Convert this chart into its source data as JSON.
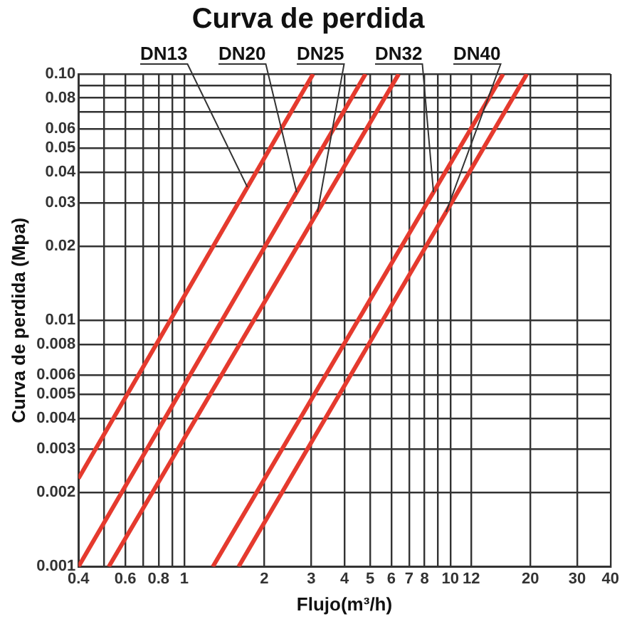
{
  "chart_data": {
    "type": "line",
    "title": "Curva de perdida",
    "xlabel": "Flujo(m³/h)",
    "ylabel": "Curva de perdida (Mpa)",
    "log": "xy",
    "grid": true,
    "legend": false,
    "marker": "none",
    "line_style": "solid",
    "xlim": [
      0.4,
      40
    ],
    "ylim": [
      0.001,
      0.1
    ],
    "xticks": [
      0.4,
      {
        "value": 0.5,
        "label": null
      },
      0.6,
      {
        "value": 0.7,
        "label": null
      },
      0.8,
      {
        "value": 0.9,
        "label": null
      },
      1,
      2,
      3,
      4,
      5,
      6,
      7,
      8,
      {
        "value": 9,
        "label": null
      },
      10,
      12,
      20,
      30,
      40
    ],
    "yticks": [
      0.001,
      0.002,
      0.003,
      0.004,
      0.005,
      0.006,
      0.008,
      0.01,
      0.02,
      0.03,
      0.04,
      0.05,
      0.06,
      {
        "value": 0.07,
        "label": null
      },
      0.08,
      {
        "value": 0.09,
        "label": null
      },
      {
        "value": 0.1,
        "label": "0.10"
      }
    ],
    "series": [
      {
        "name": "DN13",
        "color": "#e53a2e",
        "x": [
          0.4,
          3.05
        ],
        "values": [
          0.00228,
          0.1
        ]
      },
      {
        "name": "DN20",
        "color": "#e53a2e",
        "x": [
          0.4,
          4.8
        ],
        "values": [
          0.001,
          0.1
        ]
      },
      {
        "name": "DN25",
        "color": "#e53a2e",
        "x": [
          0.52,
          6.4
        ],
        "values": [
          0.001,
          0.1
        ]
      },
      {
        "name": "DN32",
        "color": "#e53a2e",
        "x": [
          1.28,
          15.8
        ],
        "values": [
          0.001,
          0.1
        ]
      },
      {
        "name": "DN40",
        "color": "#e53a2e",
        "x": [
          1.6,
          19.4
        ],
        "values": [
          0.001,
          0.1
        ]
      }
    ]
  }
}
